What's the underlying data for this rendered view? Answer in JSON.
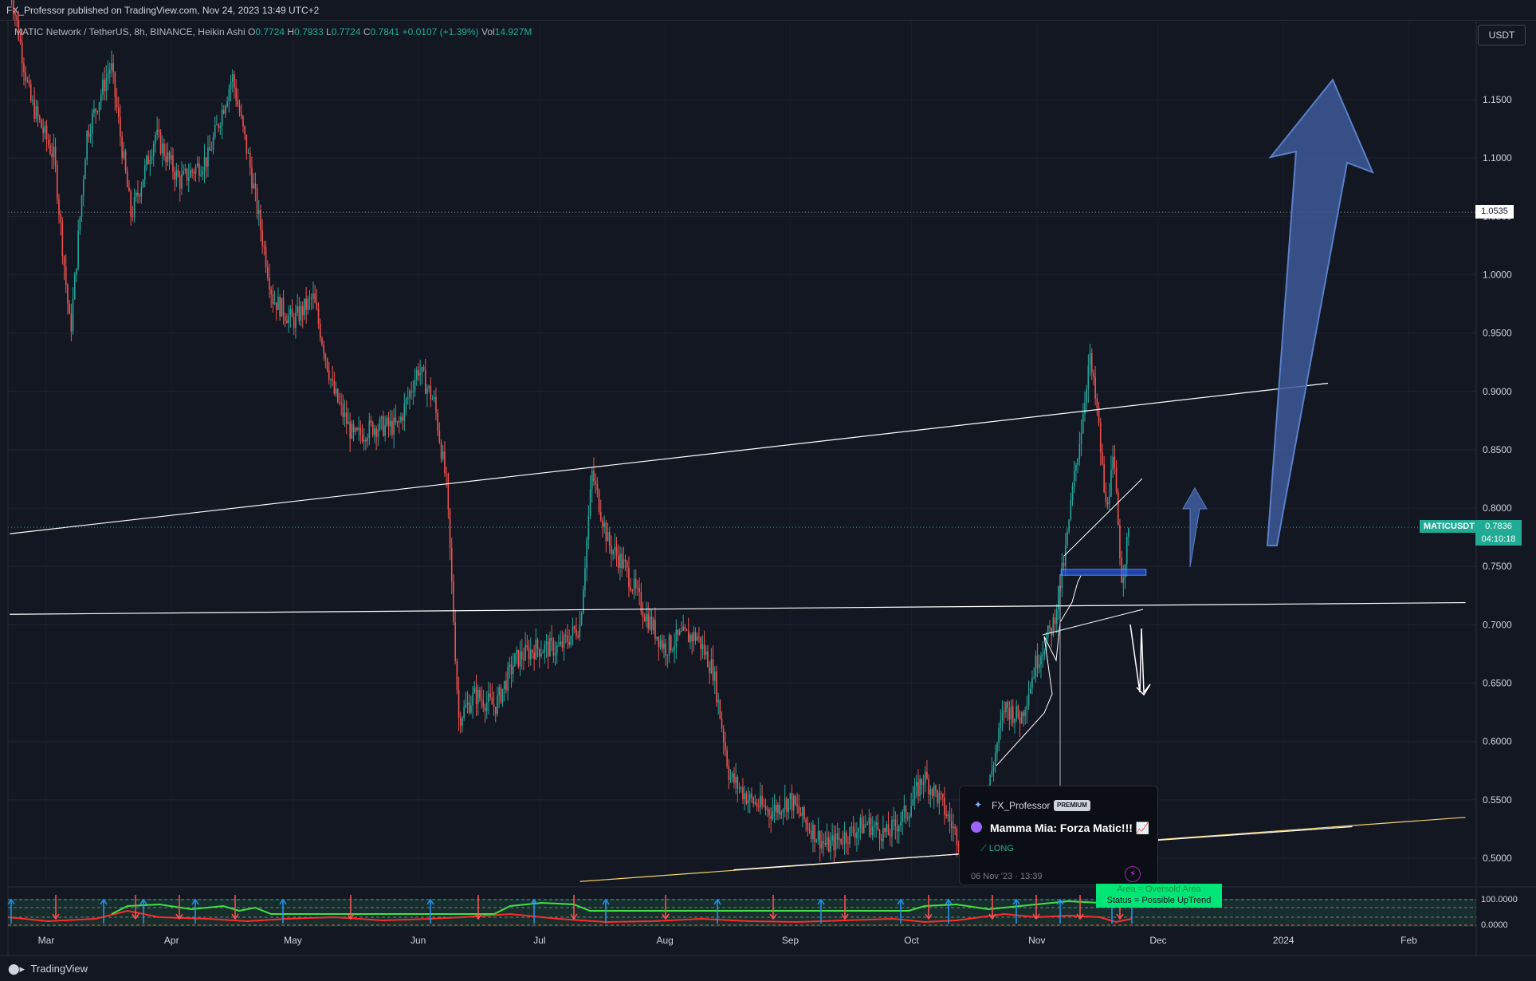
{
  "header": {
    "published": "FX_Professor published on TradingView.com, Nov 24, 2023 13:49 UTC+2"
  },
  "legend": {
    "symbol": "MATIC Network / TetherUS, 8h, BINANCE, Heikin Ashi",
    "open_label": "O",
    "open": "0.7724",
    "high_label": "H",
    "high": "0.7933",
    "low_label": "L",
    "low": "0.7724",
    "close_label": "C",
    "close": "0.7841",
    "change": "+0.0107 (+1.39%)",
    "vol_label": "Vol",
    "vol": "14.927M"
  },
  "currency_button": "USDT",
  "price_tags": {
    "ticker": "MATICUSDT",
    "last_price": "0.7836",
    "countdown": "04:10:18",
    "line_level": "1.0535"
  },
  "idea_card": {
    "author": "FX_Professor",
    "badge": "PREMIUM",
    "title": "Mamma Mia: Forza Matic!!! 📈",
    "direction": "⟋ LONG",
    "date": "06 Nov '23 · 13:39"
  },
  "indicator_status": {
    "line1": "Area = Oversold Area",
    "line2": "Status =  Possible UpTrend"
  },
  "footer": {
    "brand": "TradingView"
  },
  "colors": {
    "background": "#131722",
    "up": "#26a69a",
    "down": "#ef5350",
    "arrow_fill": "#3d5a99",
    "trendline": "#ffffff",
    "support_yellow": "#f2d36b"
  },
  "chart_data": {
    "type": "candlestick",
    "style": "Heikin Ashi",
    "timeframe": "8h",
    "yaxis": {
      "range": [
        0.48,
        1.22
      ],
      "ticks": [
        "1.1500",
        "1.1000",
        "1.0500",
        "1.0000",
        "0.9500",
        "0.9000",
        "0.8500",
        "0.8000",
        "0.7500",
        "0.7000",
        "0.6500",
        "0.6000",
        "0.5500",
        "0.5000"
      ],
      "tick_values": [
        1.15,
        1.1,
        1.05,
        1.0,
        0.95,
        0.9,
        0.85,
        0.8,
        0.75,
        0.7,
        0.65,
        0.6,
        0.55,
        0.5
      ]
    },
    "xaxis": {
      "ticks": [
        "Mar",
        "Apr",
        "May",
        "Jun",
        "Jul",
        "Aug",
        "Sep",
        "Oct",
        "Nov",
        "Dec",
        "2024",
        "Feb"
      ],
      "tick_dates": [
        "2023-03-01",
        "2023-04-01",
        "2023-05-01",
        "2023-06-01",
        "2023-07-01",
        "2023-08-01",
        "2023-09-01",
        "2023-10-01",
        "2023-11-01",
        "2023-12-01",
        "2024-01-01",
        "2024-02-01"
      ]
    },
    "price_path": [
      [
        "2023-02-20",
        1.25
      ],
      [
        "2023-02-25",
        1.15
      ],
      [
        "2023-03-03",
        1.1
      ],
      [
        "2023-03-07",
        0.95
      ],
      [
        "2023-03-11",
        1.12
      ],
      [
        "2023-03-17",
        1.18
      ],
      [
        "2023-03-22",
        1.05
      ],
      [
        "2023-03-28",
        1.12
      ],
      [
        "2023-04-03",
        1.08
      ],
      [
        "2023-04-10",
        1.1
      ],
      [
        "2023-04-16",
        1.17
      ],
      [
        "2023-04-20",
        1.1
      ],
      [
        "2023-04-26",
        0.98
      ],
      [
        "2023-05-01",
        0.96
      ],
      [
        "2023-05-06",
        0.98
      ],
      [
        "2023-05-11",
        0.9
      ],
      [
        "2023-05-16",
        0.86
      ],
      [
        "2023-05-21",
        0.87
      ],
      [
        "2023-05-27",
        0.87
      ],
      [
        "2023-06-01",
        0.92
      ],
      [
        "2023-06-05",
        0.89
      ],
      [
        "2023-06-08",
        0.82
      ],
      [
        "2023-06-11",
        0.62
      ],
      [
        "2023-06-15",
        0.64
      ],
      [
        "2023-06-20",
        0.63
      ],
      [
        "2023-06-25",
        0.67
      ],
      [
        "2023-06-30",
        0.68
      ],
      [
        "2023-07-06",
        0.68
      ],
      [
        "2023-07-11",
        0.7
      ],
      [
        "2023-07-14",
        0.83
      ],
      [
        "2023-07-18",
        0.77
      ],
      [
        "2023-07-22",
        0.75
      ],
      [
        "2023-07-27",
        0.71
      ],
      [
        "2023-08-01",
        0.68
      ],
      [
        "2023-08-05",
        0.69
      ],
      [
        "2023-08-09",
        0.69
      ],
      [
        "2023-08-13",
        0.66
      ],
      [
        "2023-08-17",
        0.57
      ],
      [
        "2023-08-22",
        0.55
      ],
      [
        "2023-08-27",
        0.54
      ],
      [
        "2023-09-01",
        0.55
      ],
      [
        "2023-09-05",
        0.53
      ],
      [
        "2023-09-10",
        0.51
      ],
      [
        "2023-09-15",
        0.52
      ],
      [
        "2023-09-20",
        0.53
      ],
      [
        "2023-09-25",
        0.52
      ],
      [
        "2023-09-30",
        0.54
      ],
      [
        "2023-10-04",
        0.57
      ],
      [
        "2023-10-08",
        0.55
      ],
      [
        "2023-10-12",
        0.52
      ],
      [
        "2023-10-16",
        0.51
      ],
      [
        "2023-10-20",
        0.56
      ],
      [
        "2023-10-24",
        0.63
      ],
      [
        "2023-10-28",
        0.62
      ],
      [
        "2023-11-01",
        0.67
      ],
      [
        "2023-11-05",
        0.7
      ],
      [
        "2023-11-08",
        0.76
      ],
      [
        "2023-11-10",
        0.82
      ],
      [
        "2023-11-12",
        0.87
      ],
      [
        "2023-11-14",
        0.93
      ],
      [
        "2023-11-16",
        0.88
      ],
      [
        "2023-11-18",
        0.8
      ],
      [
        "2023-11-20",
        0.84
      ],
      [
        "2023-11-22",
        0.74
      ],
      [
        "2023-11-24",
        0.784
      ]
    ],
    "trendlines": [
      {
        "from": [
          "2023-02-20",
          0.778
        ],
        "to": [
          "2024-01-12",
          0.907
        ],
        "color": "#ffffff"
      },
      {
        "from": [
          "2023-02-20",
          0.709
        ],
        "to": [
          "2024-02-15",
          0.719
        ],
        "color": "#ffffff"
      },
      {
        "from": [
          "2023-07-11",
          0.48
        ],
        "to": [
          "2024-02-15",
          0.535
        ],
        "color": "#f2d36b"
      },
      {
        "from": [
          "2023-08-18",
          0.49
        ],
        "to": [
          "2024-01-18",
          0.527
        ],
        "color": "#ffffff"
      }
    ],
    "horizontal_level": 1.0535,
    "support_zone": {
      "from": "2023-11-07",
      "to": "2023-11-28",
      "top": 0.7475,
      "bottom": 0.7425
    },
    "last_price": 0.7836
  }
}
